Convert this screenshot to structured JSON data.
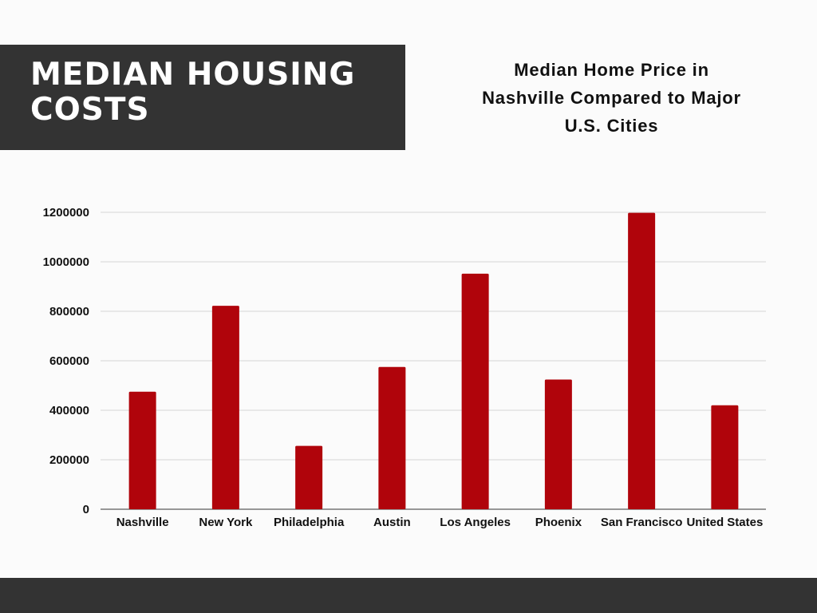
{
  "banner": {
    "title": "MEDIAN HOUSING COSTS"
  },
  "colors": {
    "banner": "#333333",
    "bar": "#b0040b",
    "grid": "#d6d6d6"
  },
  "chart_data": {
    "type": "bar",
    "title": "Median Home Price in Nashville Compared to Major U.S. Cities",
    "xlabel": "",
    "ylabel": "",
    "categories": [
      "Nashville",
      "New York",
      "Philadelphia",
      "Austin",
      "Los Angeles",
      "Phoenix",
      "San Francisco",
      "United States"
    ],
    "values": [
      475000,
      822000,
      256000,
      575000,
      952000,
      524000,
      1198000,
      420000
    ],
    "ylim": [
      0,
      1200000
    ],
    "yticks": [
      "0",
      "200000",
      "400000",
      "600000",
      "800000",
      "1000000",
      "1200000"
    ],
    "grid": true,
    "legend": "none"
  }
}
